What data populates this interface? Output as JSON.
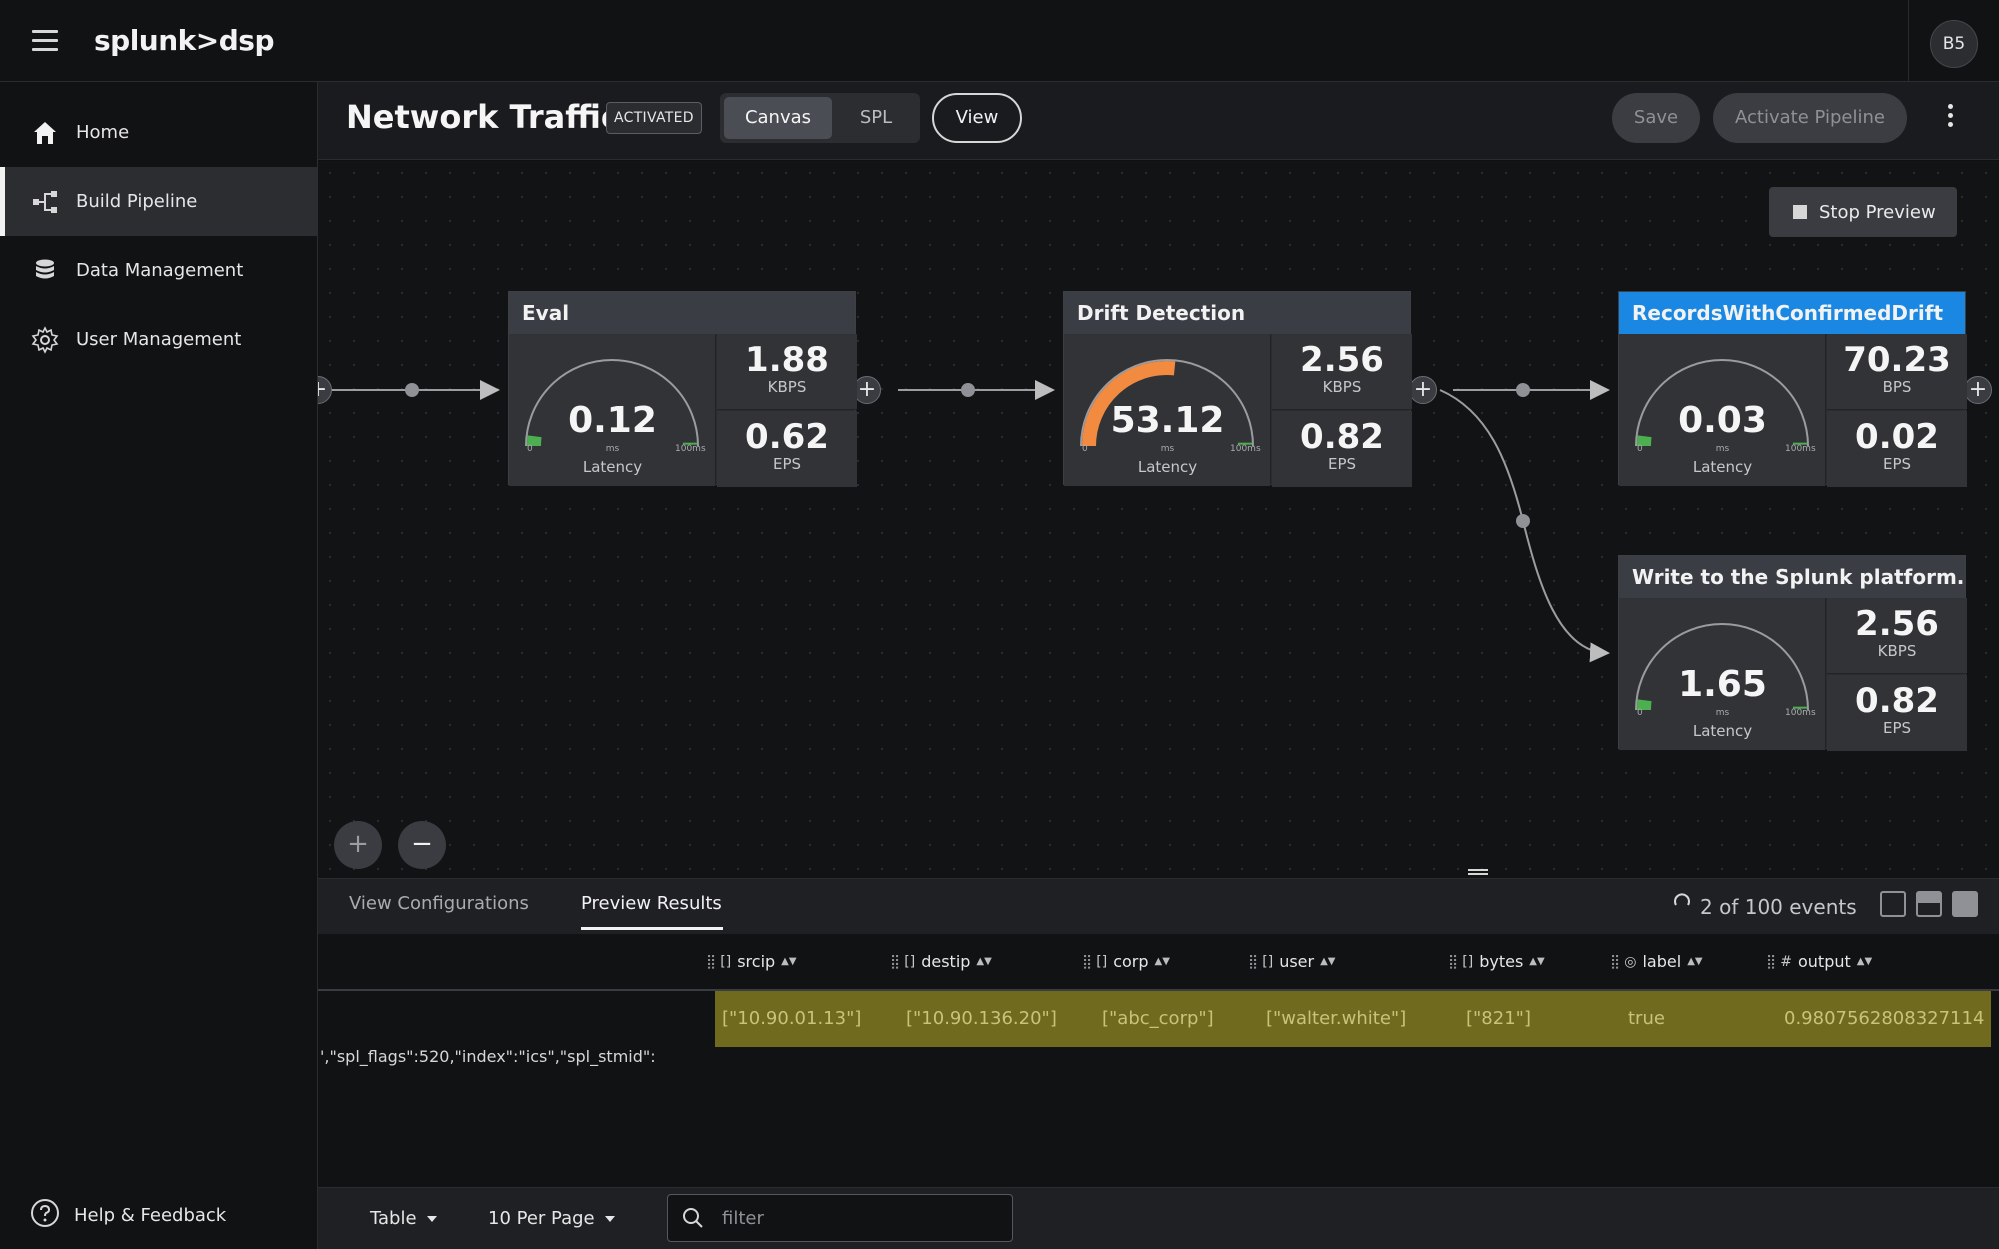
{
  "app": {
    "logo": "splunk>dsp",
    "avatar": "B5"
  },
  "sidebar": {
    "items": [
      {
        "label": "Home",
        "icon": "home-icon"
      },
      {
        "label": "Build Pipeline",
        "icon": "pipeline-icon"
      },
      {
        "label": "Data Management",
        "icon": "database-icon"
      },
      {
        "label": "User Management",
        "icon": "gear-icon"
      }
    ],
    "help": "Help & Feedback"
  },
  "header": {
    "title": "Network Traffic",
    "status": "ACTIVATED",
    "tabs": {
      "canvas": "Canvas",
      "spl": "SPL"
    },
    "view": "View",
    "save": "Save",
    "activate": "Activate Pipeline"
  },
  "canvas": {
    "stop_preview": "Stop Preview",
    "nodes": [
      {
        "title": "Eval",
        "latency": "0.12",
        "gauge_fraction": 0.0012,
        "gauge_color": "#4caf50",
        "rate": "1.88",
        "rate_unit": "KBPS",
        "eps": "0.62",
        "eps_unit": "EPS",
        "header": "gray"
      },
      {
        "title": "Drift Detection",
        "latency": "53.12",
        "gauge_fraction": 0.5312,
        "gauge_color": "#f28b40",
        "rate": "2.56",
        "rate_unit": "KBPS",
        "eps": "0.82",
        "eps_unit": "EPS",
        "header": "gray"
      },
      {
        "title": "RecordsWithConfirmedDrift",
        "latency": "0.03",
        "gauge_fraction": 0.0003,
        "gauge_color": "#4caf50",
        "rate": "70.23",
        "rate_unit": "BPS",
        "eps": "0.02",
        "eps_unit": "EPS",
        "header": "blue"
      },
      {
        "title": "Write to the Splunk platform...",
        "latency": "1.65",
        "gauge_fraction": 0.0165,
        "gauge_color": "#4caf50",
        "rate": "2.56",
        "rate_unit": "KBPS",
        "eps": "0.82",
        "eps_unit": "EPS",
        "header": "gray"
      }
    ],
    "gauge": {
      "min": "0",
      "max": "100ms",
      "unit": "ms",
      "label": "Latency"
    },
    "colors": {
      "accent_blue": "#1a88e2",
      "gauge_orange": "#f28b40",
      "gauge_green": "#4caf50"
    }
  },
  "panel": {
    "tabs": [
      "View Configurations",
      "Preview Results"
    ],
    "active_tab": "Preview Results",
    "events": "2 of 100 events",
    "columns": [
      {
        "type": "[]",
        "name": "srcip"
      },
      {
        "type": "[]",
        "name": "destip"
      },
      {
        "type": "[]",
        "name": "corp"
      },
      {
        "type": "[]",
        "name": "user"
      },
      {
        "type": "[]",
        "name": "bytes"
      },
      {
        "type": "◎",
        "name": "label"
      },
      {
        "type": "#",
        "name": "output"
      }
    ],
    "row": [
      "[\"10.90.01.13\"]",
      "[\"10.90.136.20\"]",
      "[\"abc_corp\"]",
      "[\"walter.white\"]",
      "[\"821\"]",
      "true",
      "0.9807562808327114"
    ],
    "raw_text": "',\"spl_flags\":520,\"index\":\"ics\",\"spl_stmid\":",
    "footer": {
      "view": "Table",
      "per_page": "10 Per Page",
      "filter_placeholder": "filter"
    }
  }
}
